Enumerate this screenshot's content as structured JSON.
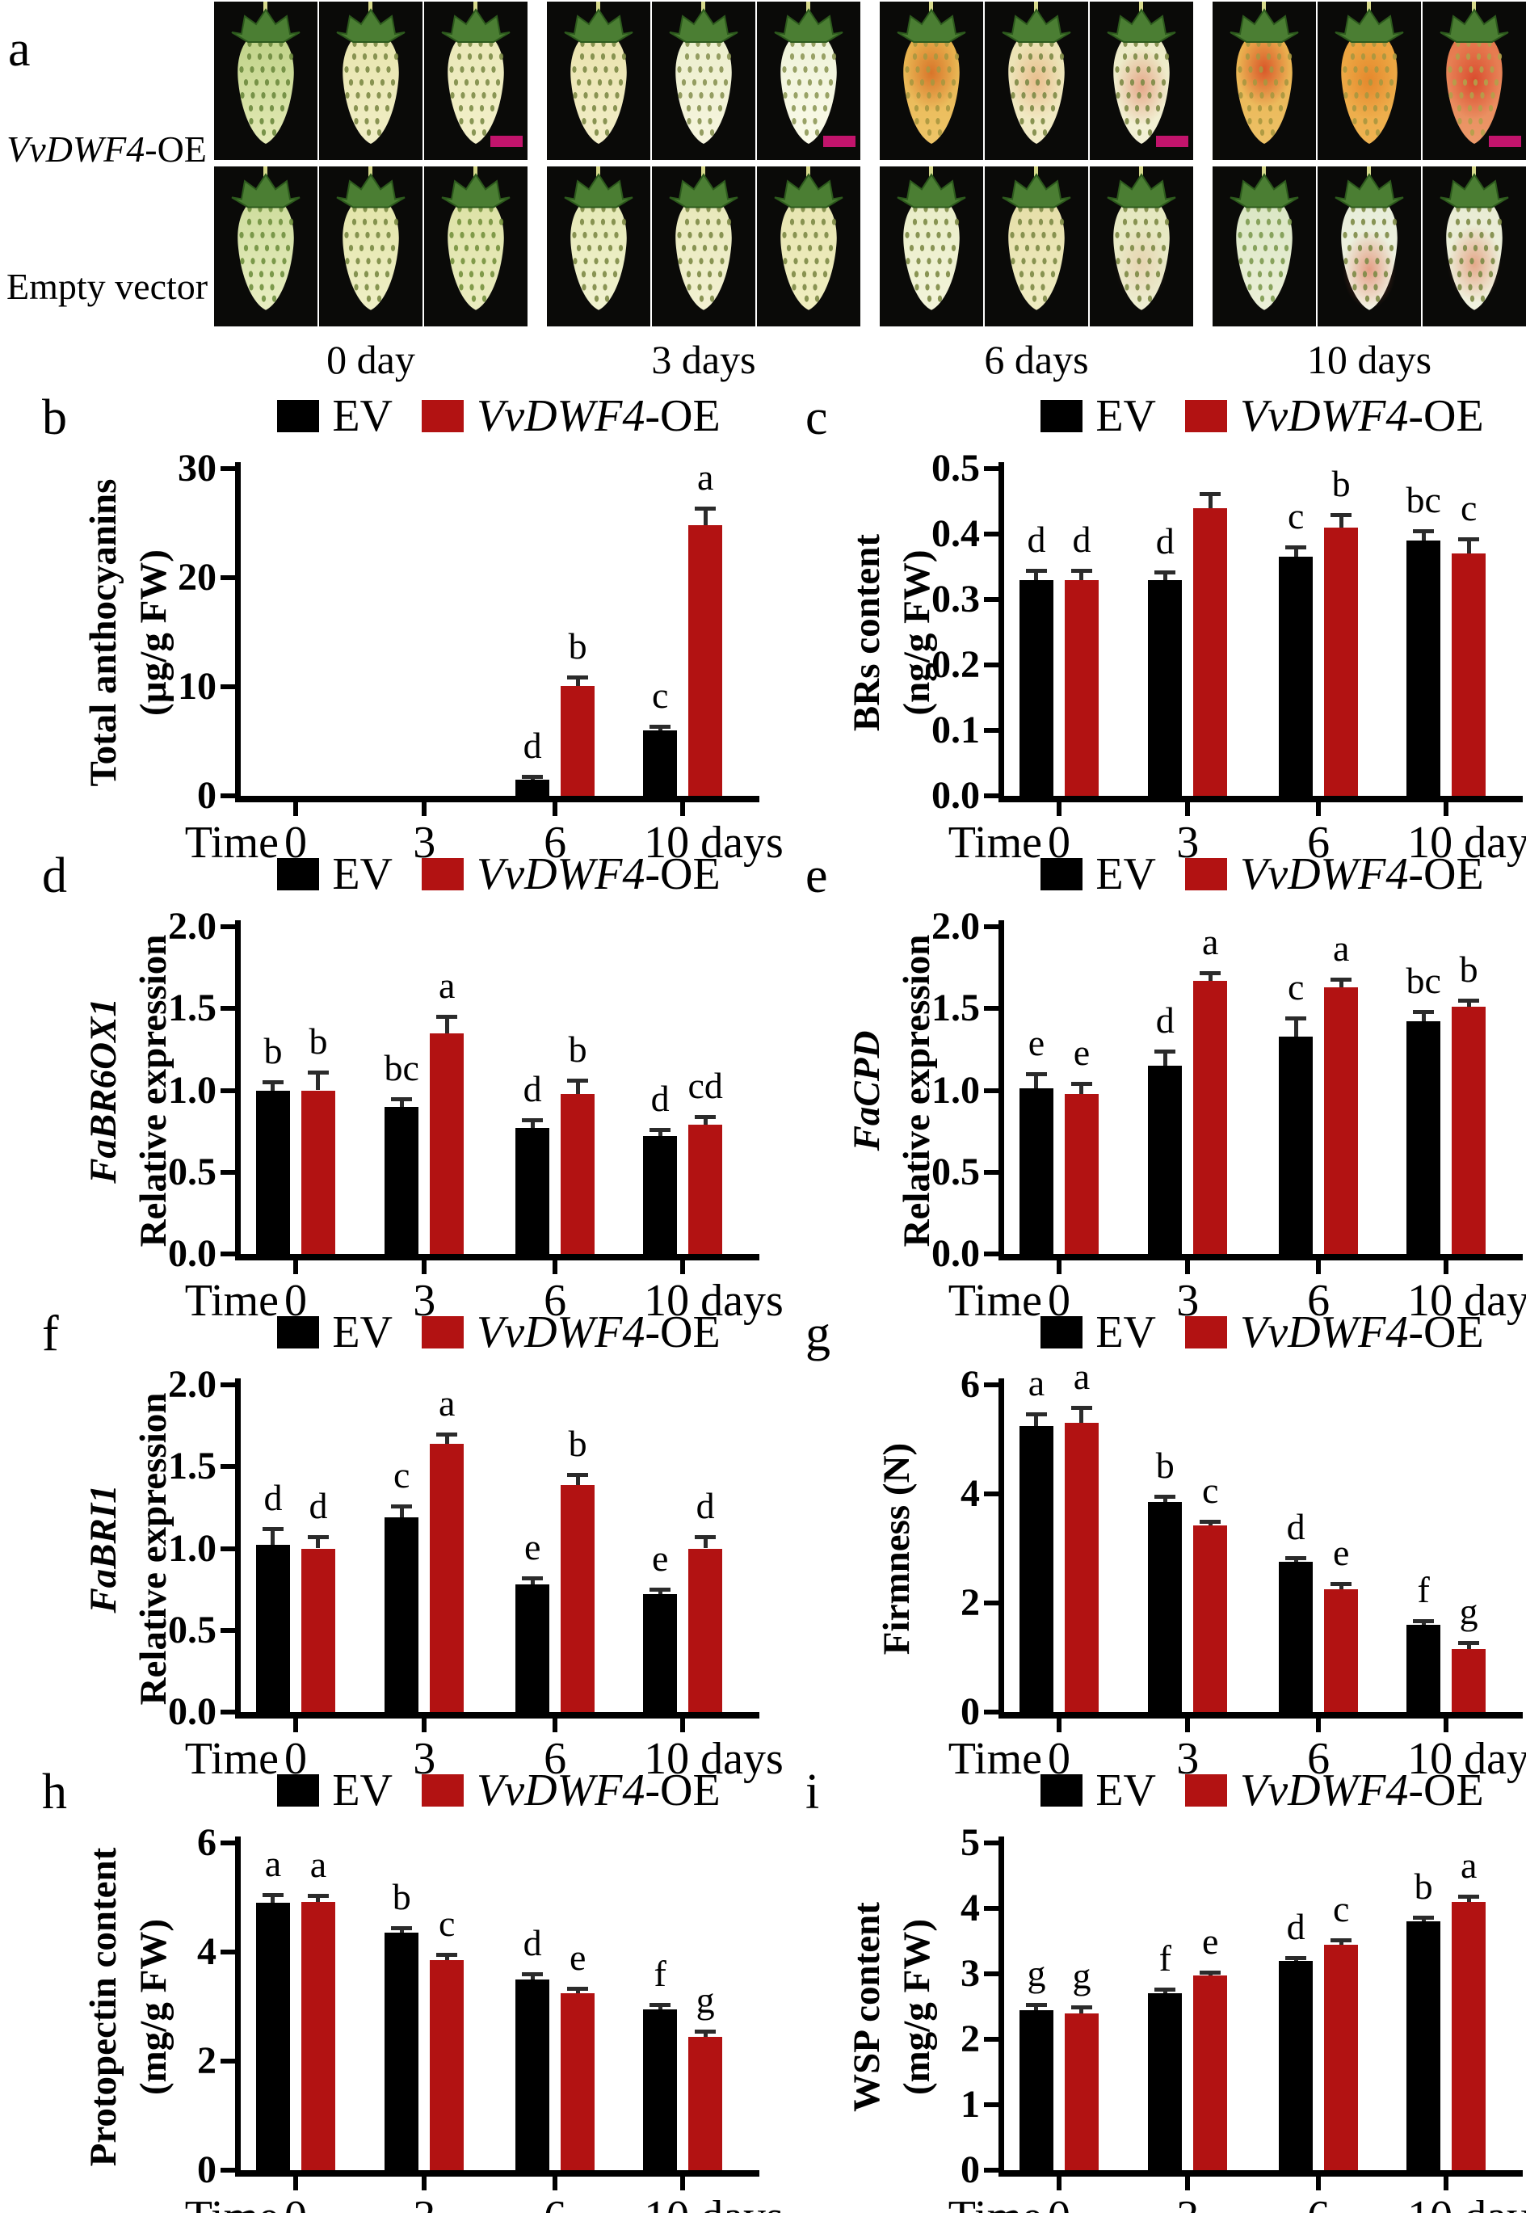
{
  "panel_a": {
    "letter": "a",
    "row1_italic": "VvDWF4",
    "row1_rest": "-OE",
    "row2": "Empty vector",
    "scalebar_color": "#c2146c",
    "groups": [
      {
        "label": "0 day",
        "top": [
          {
            "top": "#bcd084",
            "bot": "#e4eab6",
            "seed": "#6d8a3e"
          },
          {
            "top": "#e7e4ac",
            "bot": "#f1eec6",
            "seed": "#7d8a46"
          },
          {
            "top": "#e9e7b6",
            "bot": "#f3f0ca",
            "seed": "#7d8c48",
            "scalebar": true
          }
        ],
        "bottom": [
          {
            "top": "#ccdb9a",
            "bot": "#e9eec2",
            "seed": "#70903f"
          },
          {
            "top": "#e2e4a8",
            "bot": "#efefc6",
            "seed": "#7a8a44"
          },
          {
            "top": "#dce1a4",
            "bot": "#ebecc0",
            "seed": "#75913e"
          }
        ]
      },
      {
        "label": "3 days",
        "top": [
          {
            "top": "#e9e2ac",
            "bot": "#f3eec8",
            "seed": "#7d8a46"
          },
          {
            "top": "#ebeecb",
            "bot": "#f6f5de",
            "seed": "#8a9454"
          },
          {
            "top": "#eef2d8",
            "bot": "#fafae8",
            "seed": "#8e9858",
            "scalebar": true
          }
        ],
        "bottom": [
          {
            "top": "#e4e8b4",
            "bot": "#f1f2d0",
            "seed": "#7d8a46"
          },
          {
            "top": "#e7e7b8",
            "bot": "#f2f1d2",
            "seed": "#7d8a46"
          },
          {
            "top": "#e6e4b0",
            "bot": "#f0eec0",
            "seed": "#7d8a46"
          }
        ]
      },
      {
        "label": "6 days",
        "top": [
          {
            "top": "#e6ae48",
            "bot": "#eec568",
            "seed": "#a8973f",
            "blush": "#d4641f",
            "blushOp": 0.8,
            "blushCy": 0.38
          },
          {
            "top": "#eae0b0",
            "bot": "#f2ecc8",
            "seed": "#7d8a46",
            "blush": "#e58e58",
            "blushOp": 0.45,
            "blushCy": 0.45
          },
          {
            "top": "#ebe9c4",
            "bot": "#f3f1d6",
            "seed": "#7d8a46",
            "blush": "#dc6347",
            "blushOp": 0.5,
            "blushCy": 0.5,
            "scalebar": true
          }
        ],
        "bottom": [
          {
            "top": "#e8ecc6",
            "bot": "#f3f4da",
            "seed": "#7d8a46"
          },
          {
            "top": "#e5dda6",
            "bot": "#efecc2",
            "seed": "#7d8a46"
          },
          {
            "top": "#e3e6bc",
            "bot": "#eeeed2",
            "seed": "#7d8a46",
            "blush": "#df9f7a",
            "blushOp": 0.3,
            "blushCy": 0.6
          }
        ]
      },
      {
        "label": "10 days",
        "top": [
          {
            "top": "#eaaf4a",
            "bot": "#edc166",
            "seed": "#a8973f",
            "blush": "#d64722",
            "blushOp": 0.85,
            "blushCy": 0.35
          },
          {
            "top": "#eba13c",
            "bot": "#efb352",
            "seed": "#a8973f",
            "blush": "#e0761f",
            "blushOp": 0.65,
            "blushCy": 0.45
          },
          {
            "top": "#e4744a",
            "bot": "#ec9a6a",
            "seed": "#b3a04a",
            "blush": "#d63c22",
            "blushOp": 0.8,
            "blushCy": 0.45,
            "scalebar": true
          }
        ],
        "bottom": [
          {
            "top": "#d9e5c2",
            "bot": "#ebf0d8",
            "seed": "#7d9a50"
          },
          {
            "top": "#e6ecd8",
            "bot": "#f3f5e6",
            "seed": "#7d8a46",
            "blush": "#dd6647",
            "blushOp": 0.6,
            "blushCy": 0.65
          },
          {
            "top": "#e7ead2",
            "bot": "#f1f3e0",
            "seed": "#7d8a46",
            "blush": "#de6e4a",
            "blushOp": 0.55,
            "blushCy": 0.6
          }
        ]
      }
    ]
  },
  "legend": {
    "ev_label": "EV",
    "oe_label_italic": "VvDWF4",
    "oe_label_rest": "-OE"
  },
  "colors": {
    "ev_bar": "#000000",
    "oe_bar": "#b21212",
    "error": "#2b2b2b",
    "axis": "#000000",
    "scalebar": "#c2146c",
    "leaf": "#4b7e33",
    "leaf_dark": "#2d5a1d",
    "stem": "#d7d98c"
  },
  "xaxis": {
    "prefix": "Time",
    "categories": [
      "0",
      "3",
      "6",
      "10"
    ],
    "suffix": "days"
  },
  "chart_data": [
    {
      "panel": "b",
      "type": "bar",
      "ylabel_line1": "Total anthocyanins",
      "ylabel_line1_italic": false,
      "ylabel_line2": "(µg/g FW)",
      "ylim": [
        0,
        30
      ],
      "yticks": [
        "0",
        "10",
        "20",
        "30"
      ],
      "categories": [
        "0",
        "3",
        "6",
        "10"
      ],
      "series": [
        {
          "name": "EV",
          "values": [
            0,
            0,
            1.5,
            6.0
          ],
          "errors": [
            0,
            0,
            0.25,
            0.4
          ],
          "letters": [
            "",
            "",
            "d",
            "c"
          ]
        },
        {
          "name": "VvDWF4-OE",
          "values": [
            0,
            0,
            10.1,
            24.8
          ],
          "errors": [
            0,
            0,
            0.8,
            1.6
          ],
          "letters": [
            "",
            "",
            "b",
            "a"
          ]
        }
      ]
    },
    {
      "panel": "c",
      "type": "bar",
      "ylabel_line1": "BRs content",
      "ylabel_line1_italic": false,
      "ylabel_line2": "(ng/g FW)",
      "ylim": [
        0,
        0.5
      ],
      "yticks": [
        "0.0",
        "0.1",
        "0.2",
        "0.3",
        "0.4",
        "0.5"
      ],
      "categories": [
        "0",
        "3",
        "6",
        "10"
      ],
      "series": [
        {
          "name": "EV",
          "values": [
            0.33,
            0.33,
            0.365,
            0.39
          ],
          "errors": [
            0.015,
            0.012,
            0.015,
            0.015
          ],
          "letters": [
            "d",
            "d",
            "c",
            "bc"
          ]
        },
        {
          "name": "VvDWF4-OE",
          "values": [
            0.33,
            0.44,
            0.41,
            0.37
          ],
          "errors": [
            0.015,
            0.022,
            0.02,
            0.022
          ],
          "letters": [
            "d",
            "",
            "b",
            "c"
          ]
        }
      ]
    },
    {
      "panel": "d",
      "type": "bar",
      "ylabel_line1": "FaBR6OX1",
      "ylabel_line1_italic": true,
      "ylabel_line2": "Relative expression",
      "ylim": [
        0,
        2
      ],
      "yticks": [
        "0.0",
        "0.5",
        "1.0",
        "1.5",
        "2.0"
      ],
      "categories": [
        "0",
        "3",
        "6",
        "10"
      ],
      "series": [
        {
          "name": "EV",
          "values": [
            1.0,
            0.9,
            0.77,
            0.72
          ],
          "errors": [
            0.05,
            0.05,
            0.05,
            0.04
          ],
          "letters": [
            "b",
            "bc",
            "d",
            "d"
          ]
        },
        {
          "name": "VvDWF4-OE",
          "values": [
            1.0,
            1.35,
            0.98,
            0.79
          ],
          "errors": [
            0.11,
            0.1,
            0.08,
            0.05
          ],
          "letters": [
            "b",
            "a",
            "b",
            "cd"
          ]
        }
      ]
    },
    {
      "panel": "e",
      "type": "bar",
      "ylabel_line1": "FaCPD",
      "ylabel_line1_italic": true,
      "ylabel_line2": "Relative expression",
      "ylim": [
        0,
        2
      ],
      "yticks": [
        "0.0",
        "0.5",
        "1.0",
        "1.5",
        "2.0"
      ],
      "categories": [
        "0",
        "3",
        "6",
        "10"
      ],
      "series": [
        {
          "name": "EV",
          "values": [
            1.01,
            1.15,
            1.33,
            1.42
          ],
          "errors": [
            0.09,
            0.09,
            0.11,
            0.06
          ],
          "letters": [
            "e",
            "d",
            "c",
            "bc"
          ]
        },
        {
          "name": "VvDWF4-OE",
          "values": [
            0.98,
            1.67,
            1.63,
            1.51
          ],
          "errors": [
            0.06,
            0.05,
            0.05,
            0.04
          ],
          "letters": [
            "e",
            "a",
            "a",
            "b"
          ]
        }
      ]
    },
    {
      "panel": "f",
      "type": "bar",
      "ylabel_line1": "FaBRI1",
      "ylabel_line1_italic": true,
      "ylabel_line2": "Relative expression",
      "ylim": [
        0,
        2
      ],
      "yticks": [
        "0.0",
        "0.5",
        "1.0",
        "1.5",
        "2.0"
      ],
      "categories": [
        "0",
        "3",
        "6",
        "10"
      ],
      "series": [
        {
          "name": "EV",
          "values": [
            1.02,
            1.19,
            0.78,
            0.72
          ],
          "errors": [
            0.1,
            0.07,
            0.04,
            0.03
          ],
          "letters": [
            "d",
            "c",
            "e",
            "e"
          ]
        },
        {
          "name": "VvDWF4-OE",
          "values": [
            1.0,
            1.64,
            1.39,
            1.0
          ],
          "errors": [
            0.07,
            0.06,
            0.06,
            0.07
          ],
          "letters": [
            "d",
            "a",
            "b",
            "d"
          ]
        }
      ]
    },
    {
      "panel": "g",
      "type": "bar",
      "ylabel_line1": "Firmness (N)",
      "ylabel_line1_italic": false,
      "ylabel_line2": null,
      "ylim": [
        0,
        6
      ],
      "yticks": [
        "0",
        "2",
        "4",
        "6"
      ],
      "categories": [
        "0",
        "3",
        "6",
        "10"
      ],
      "series": [
        {
          "name": "EV",
          "values": [
            5.25,
            3.85,
            2.75,
            1.6
          ],
          "errors": [
            0.22,
            0.1,
            0.08,
            0.08
          ],
          "letters": [
            "a",
            "b",
            "d",
            "f"
          ]
        },
        {
          "name": "VvDWF4-OE",
          "values": [
            5.3,
            3.42,
            2.25,
            1.15
          ],
          "errors": [
            0.28,
            0.08,
            0.1,
            0.12
          ],
          "letters": [
            "a",
            "c",
            "e",
            "g"
          ]
        }
      ]
    },
    {
      "panel": "h",
      "type": "bar",
      "ylabel_line1": "Protopectin content",
      "ylabel_line1_italic": false,
      "ylabel_line2": "(mg/g FW)",
      "ylim": [
        0,
        6
      ],
      "yticks": [
        "0",
        "2",
        "4",
        "6"
      ],
      "categories": [
        "0",
        "3",
        "6",
        "10"
      ],
      "series": [
        {
          "name": "EV",
          "values": [
            4.9,
            4.35,
            3.5,
            2.95
          ],
          "errors": [
            0.15,
            0.1,
            0.1,
            0.08
          ],
          "letters": [
            "a",
            "b",
            "d",
            "f"
          ]
        },
        {
          "name": "VvDWF4-OE",
          "values": [
            4.92,
            3.85,
            3.25,
            2.45
          ],
          "errors": [
            0.12,
            0.1,
            0.08,
            0.1
          ],
          "letters": [
            "a",
            "c",
            "e",
            "g"
          ]
        }
      ]
    },
    {
      "panel": "i",
      "type": "bar",
      "ylabel_line1": "WSP content",
      "ylabel_line1_italic": false,
      "ylabel_line2": "(mg/g FW)",
      "ylim": [
        0,
        5
      ],
      "yticks": [
        "0",
        "1",
        "2",
        "3",
        "4",
        "5"
      ],
      "categories": [
        "0",
        "3",
        "6",
        "10"
      ],
      "series": [
        {
          "name": "EV",
          "values": [
            2.45,
            2.7,
            3.2,
            3.8
          ],
          "errors": [
            0.08,
            0.06,
            0.05,
            0.06
          ],
          "letters": [
            "g",
            "f",
            "d",
            "b"
          ]
        },
        {
          "name": "VvDWF4-OE",
          "values": [
            2.4,
            2.97,
            3.45,
            4.1
          ],
          "errors": [
            0.1,
            0.06,
            0.07,
            0.08
          ],
          "letters": [
            "g",
            "e",
            "c",
            "a"
          ]
        }
      ]
    }
  ]
}
